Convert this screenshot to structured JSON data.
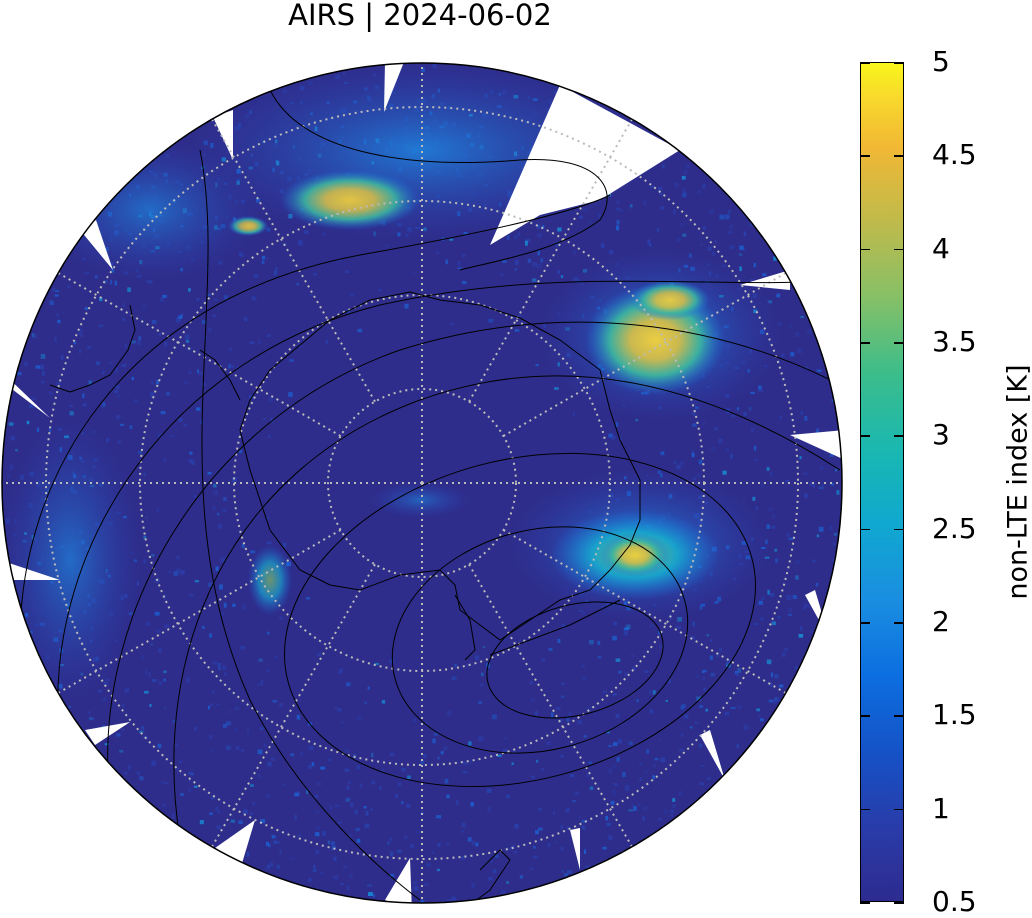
{
  "title": "AIRS | 2024-06-02",
  "colorbar": {
    "label": "non-LTE index [K]",
    "min": 0.5,
    "max": 5,
    "ticks": [
      "5",
      "4.5",
      "4",
      "3.5",
      "3",
      "2.5",
      "2",
      "1.5",
      "1",
      "0.5"
    ],
    "tick_values": [
      5,
      4.5,
      4,
      3.5,
      3,
      2.5,
      2,
      1.5,
      1,
      0.5
    ],
    "colors": [
      "#2d2b8f",
      "#1553c8",
      "#10a8cf",
      "#3cbd8a",
      "#bfba4c",
      "#f8da2c",
      "#f9f61a"
    ]
  },
  "map": {
    "projection": "polar stereographic (south pole)",
    "background_color": "#2e2d8c",
    "graticule_color": "#bbbbbb",
    "coastline_color": "#000000"
  }
}
